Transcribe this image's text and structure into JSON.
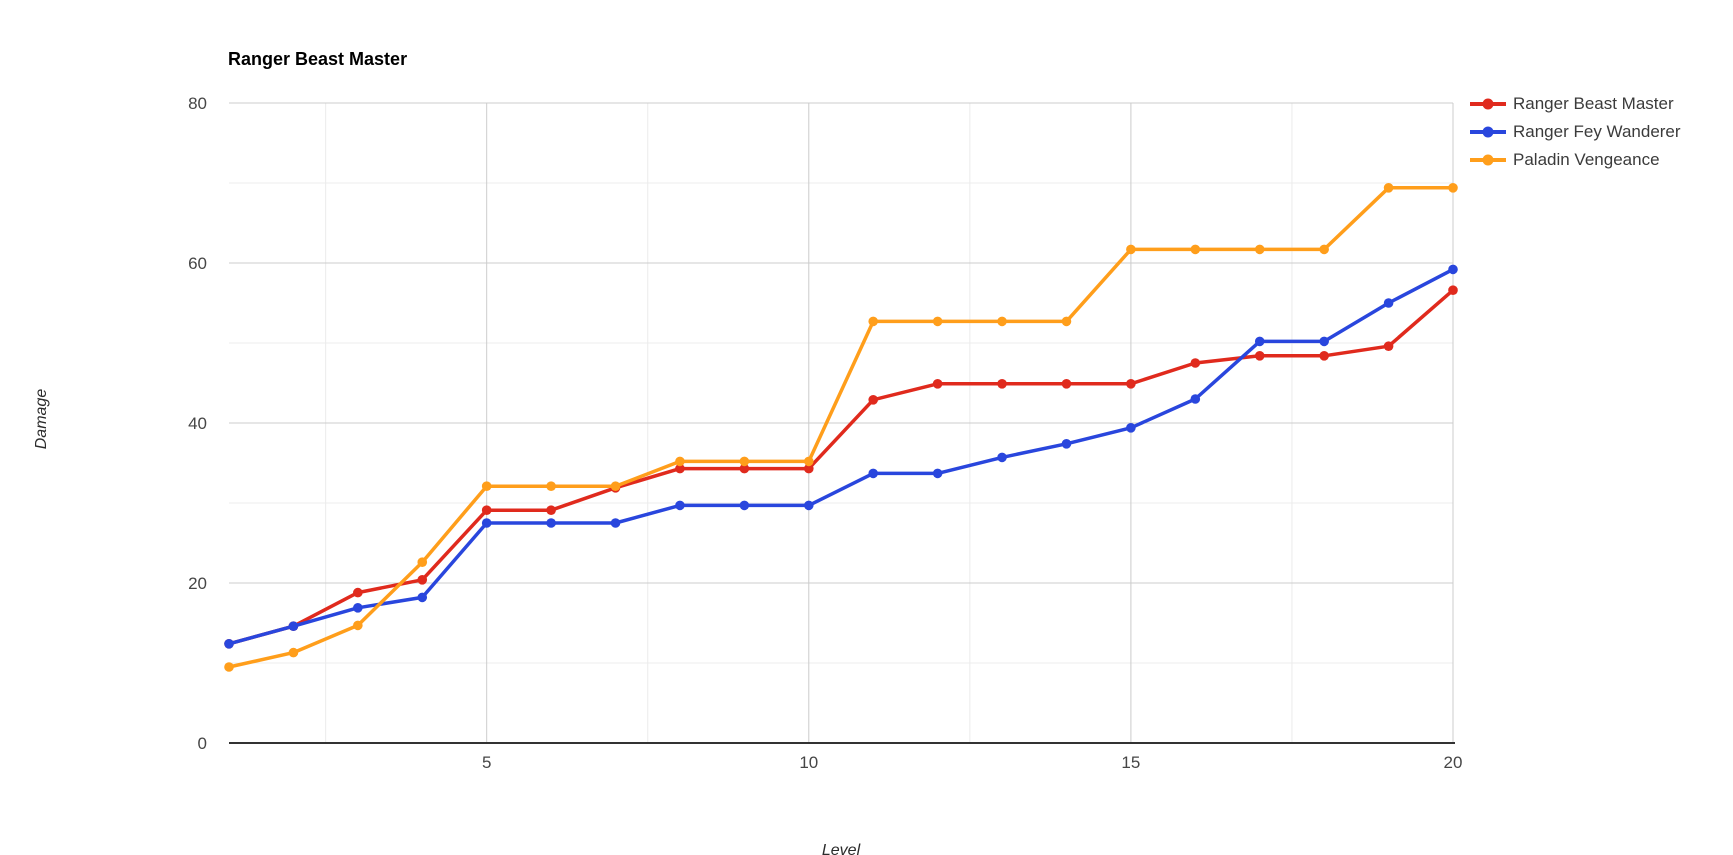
{
  "chart_data": {
    "type": "line",
    "title": "Ranger Beast Master",
    "xlabel": "Level",
    "ylabel": "Damage",
    "x": [
      1,
      2,
      3,
      4,
      5,
      6,
      7,
      8,
      9,
      10,
      11,
      12,
      13,
      14,
      15,
      16,
      17,
      18,
      19,
      20
    ],
    "series": [
      {
        "name": "Ranger Beast Master",
        "color": "#e02a1d",
        "values": [
          12.4,
          14.6,
          18.8,
          20.4,
          29.1,
          29.1,
          31.9,
          34.3,
          34.3,
          34.3,
          42.9,
          44.9,
          44.9,
          44.9,
          44.9,
          47.5,
          48.4,
          48.4,
          49.6,
          56.6
        ]
      },
      {
        "name": "Ranger Fey Wanderer",
        "color": "#2946dd",
        "values": [
          12.4,
          14.6,
          16.9,
          18.2,
          27.5,
          27.5,
          27.5,
          29.7,
          29.7,
          29.7,
          33.7,
          33.7,
          35.7,
          37.4,
          39.4,
          43.0,
          50.2,
          50.2,
          55.0,
          59.2
        ]
      },
      {
        "name": "Paladin Vengeance",
        "color": "#ff9e1b",
        "values": [
          9.5,
          11.3,
          14.7,
          22.6,
          32.1,
          32.1,
          32.1,
          35.2,
          35.2,
          35.2,
          52.7,
          52.7,
          52.7,
          52.7,
          61.7,
          61.7,
          61.7,
          61.7,
          69.4,
          69.4
        ]
      }
    ],
    "xlim": [
      1,
      20
    ],
    "ylim": [
      0,
      80
    ],
    "x_ticks": [
      5,
      10,
      15,
      20
    ],
    "x_minor_ticks": [
      2.5,
      7.5,
      12.5,
      17.5
    ],
    "y_ticks": [
      0,
      20,
      40,
      60,
      80
    ],
    "y_minor_ticks": [
      10,
      30,
      50,
      70
    ],
    "grid": true,
    "legend_position": "right"
  },
  "style_colors": {
    "major_gridline": "#cccccc",
    "minor_gridline": "#ececec",
    "axis_line": "#333333",
    "tick_label": "#464646"
  }
}
